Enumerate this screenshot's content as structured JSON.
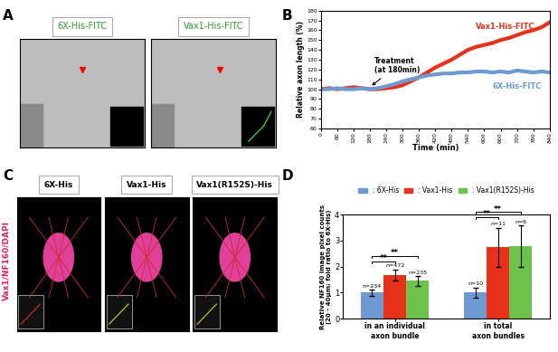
{
  "panel_labels": [
    "A",
    "B",
    "C",
    "D"
  ],
  "panel_a": {
    "titles": [
      "6X-His-FITC",
      "Vax1-His-FITC"
    ]
  },
  "panel_c": {
    "titles": [
      "6X-His",
      "Vax1-His",
      "Vax1(R152S)-His"
    ],
    "stain_label": "Vax1/NF160/DAPI"
  },
  "chart_data": [
    {
      "type": "line",
      "x_label": "Time (min)",
      "y_label": "Relative axon length (%)",
      "x": [
        0,
        30,
        60,
        90,
        120,
        150,
        180,
        210,
        240,
        270,
        300,
        330,
        360,
        390,
        420,
        450,
        480,
        510,
        540,
        570,
        600,
        630,
        660,
        690,
        720,
        750,
        780,
        810,
        840
      ],
      "series": [
        {
          "name": "Vax1-His-FITC",
          "color": "#e8311a",
          "values": [
            100,
            101,
            100,
            101,
            102,
            101,
            100,
            100,
            101,
            102,
            104,
            108,
            112,
            117,
            122,
            126,
            130,
            135,
            140,
            143,
            145,
            147,
            150,
            152,
            155,
            158,
            160,
            163,
            168
          ]
        },
        {
          "name": "6X-His-FITC",
          "color": "#6d9bd1",
          "values": [
            100,
            100,
            101,
            100,
            100,
            101,
            100,
            101,
            103,
            105,
            108,
            110,
            112,
            114,
            115,
            116,
            116,
            117,
            117,
            118,
            118,
            117,
            118,
            117,
            119,
            118,
            117,
            118,
            117
          ]
        }
      ],
      "xlim": [
        0,
        840
      ],
      "xticks": [
        0,
        60,
        120,
        180,
        240,
        300,
        360,
        420,
        480,
        540,
        600,
        660,
        720,
        780,
        840
      ],
      "ylim": [
        60,
        180
      ],
      "yticks": [
        60,
        70,
        80,
        90,
        100,
        110,
        120,
        130,
        140,
        150,
        160,
        170,
        180
      ],
      "annotation": {
        "text": "Treatment\n(at 180min)",
        "x": 180,
        "y": 102
      }
    },
    {
      "type": "bar",
      "y_label": "Relative NF160 image pixel counts\n(20 - 40μm; fold ratio to 6X-His)",
      "categories": [
        "in an individual\naxon bundle",
        "in total\naxon bundles"
      ],
      "series": [
        {
          "name": ": 6X-His",
          "color": "#6d9bd1",
          "values": [
            1.0,
            1.0
          ],
          "errors": [
            0.12,
            0.2
          ],
          "n_labels": [
            "n=234",
            "n=10"
          ]
        },
        {
          "name": ": Vax1-His",
          "color": "#e8311a",
          "values": [
            1.68,
            2.75
          ],
          "errors": [
            0.22,
            0.75
          ],
          "n_labels": [
            "n=472",
            "n=11"
          ]
        },
        {
          "name": ": Vax1(R152S)-His",
          "color": "#6cc24a",
          "values": [
            1.45,
            2.8
          ],
          "errors": [
            0.2,
            0.8
          ],
          "n_labels": [
            "n=235",
            "n=6"
          ]
        }
      ],
      "ylim": [
        0,
        4
      ],
      "yticks": [
        0,
        1,
        2,
        3,
        4
      ],
      "legend": "upper center",
      "significance": [
        {
          "group": 0,
          "pair": [
            0,
            1
          ],
          "label": "**"
        },
        {
          "group": 0,
          "pair": [
            0,
            2
          ],
          "label": "**"
        },
        {
          "group": 1,
          "pair": [
            0,
            1
          ],
          "label": "**"
        },
        {
          "group": 1,
          "pair": [
            0,
            2
          ],
          "label": "**"
        }
      ]
    }
  ]
}
